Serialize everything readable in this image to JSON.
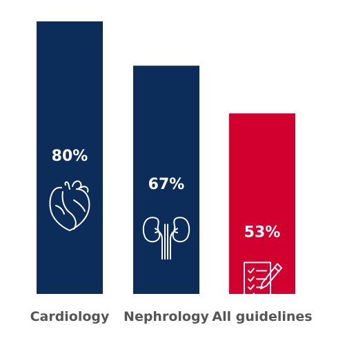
{
  "chart_data": {
    "type": "bar",
    "categories": [
      "Cardiology",
      "Nephrology",
      "All guidelines"
    ],
    "values": [
      80,
      67,
      53
    ],
    "value_labels": [
      "80%",
      "67%",
      "53%"
    ],
    "ylim": [
      0,
      100
    ],
    "grid": false,
    "legend": "none",
    "colors": [
      "#0c2d5a",
      "#0c2d5a",
      "#d1002e"
    ],
    "icons": [
      "heart-icon",
      "kidneys-icon",
      "checklist-pencil-icon"
    ]
  }
}
